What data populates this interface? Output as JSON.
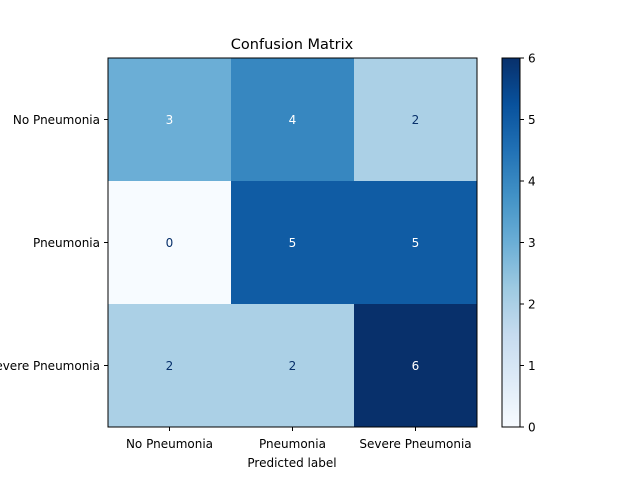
{
  "chart_data": {
    "type": "heatmap",
    "title": "Confusion Matrix",
    "xlabel": "Predicted label",
    "ylabel": "",
    "x_categories": [
      "No Pneumonia",
      "Pneumonia",
      "Severe Pneumonia"
    ],
    "y_categories": [
      "No Pneumonia",
      "Pneumonia",
      "Severe Pneumonia"
    ],
    "values": [
      [
        3,
        4,
        2
      ],
      [
        0,
        5,
        5
      ],
      [
        2,
        2,
        6
      ]
    ],
    "colormap": "Blues",
    "color_range": [
      0,
      6
    ],
    "colorbar_ticks": [
      0,
      1,
      2,
      3,
      4,
      5,
      6
    ],
    "text_colors": {
      "on_light": "#08306b",
      "on_dark": "#ffffff"
    }
  }
}
